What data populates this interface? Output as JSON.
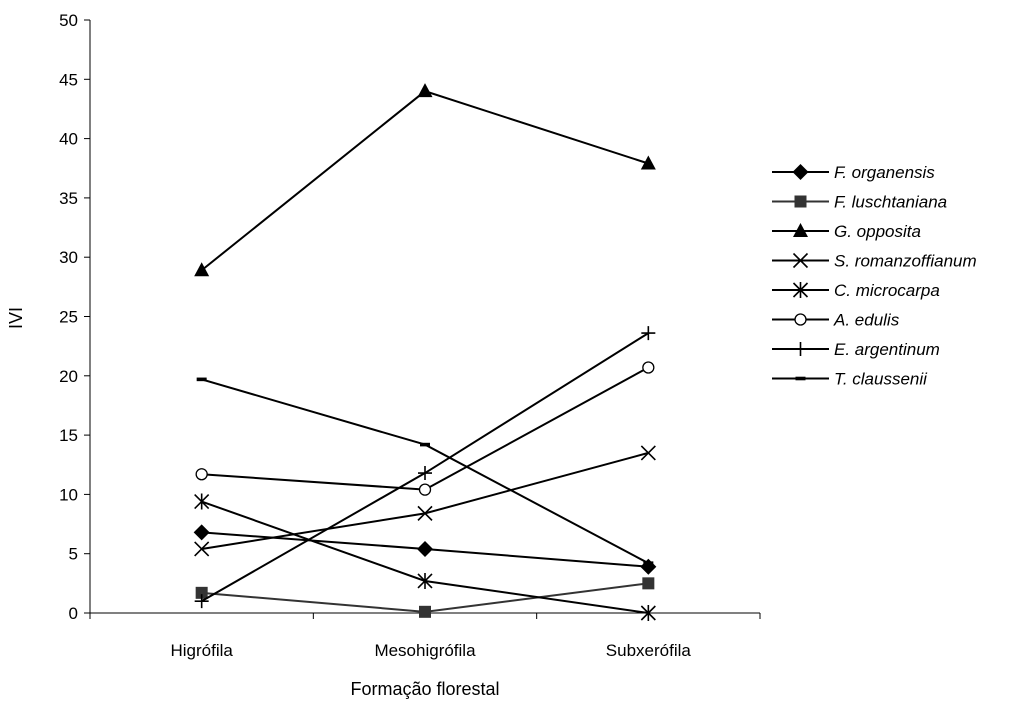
{
  "chart_data": {
    "type": "line",
    "categories": [
      "Higrófila",
      "Mesohigrófila",
      "Subxerófila"
    ],
    "xlabel": "Formação florestal",
    "ylabel": "IVI",
    "ylim": [
      0,
      50
    ],
    "yticks": [
      0,
      5,
      10,
      15,
      20,
      25,
      30,
      35,
      40,
      45,
      50
    ],
    "grid": false,
    "legend_position": "right",
    "series": [
      {
        "name": "F. organensis",
        "marker": "diamond",
        "color": "#000000",
        "values": [
          6.8,
          5.4,
          3.9
        ]
      },
      {
        "name": "F. luschtaniana",
        "marker": "square",
        "color": "#333333",
        "values": [
          1.7,
          0.1,
          2.5
        ]
      },
      {
        "name": "G. opposita",
        "marker": "triangle",
        "color": "#000000",
        "values": [
          28.9,
          44.0,
          37.9
        ]
      },
      {
        "name": "S. romanzoffianum",
        "marker": "x",
        "color": "#000000",
        "values": [
          5.4,
          8.4,
          13.5
        ]
      },
      {
        "name": "C. microcarpa",
        "marker": "asterisk",
        "color": "#000000",
        "values": [
          9.4,
          2.7,
          0.0
        ]
      },
      {
        "name": "A. edulis",
        "marker": "circle",
        "color": "#000000",
        "values": [
          11.7,
          10.4,
          20.7
        ]
      },
      {
        "name": "E. argentinum",
        "marker": "plus",
        "color": "#000000",
        "values": [
          1.0,
          11.8,
          23.6
        ]
      },
      {
        "name": "T. claussenii",
        "marker": "dash",
        "color": "#000000",
        "values": [
          19.7,
          14.2,
          4.2
        ]
      }
    ]
  }
}
